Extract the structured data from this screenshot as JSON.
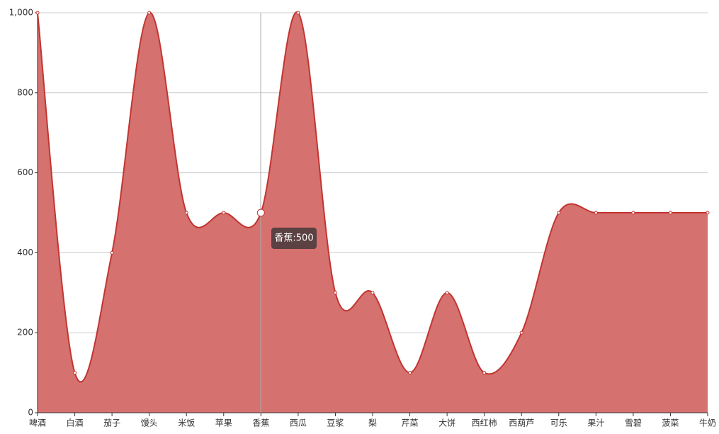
{
  "chart_data": {
    "type": "area",
    "categories": [
      "啤酒",
      "白酒",
      "茄子",
      "馒头",
      "米饭",
      "苹果",
      "香蕉",
      "西瓜",
      "豆浆",
      "梨",
      "芹菜",
      "大饼",
      "西红柿",
      "西葫芦",
      "可乐",
      "果汁",
      "雪碧",
      "菠菜",
      "牛奶"
    ],
    "values": [
      1000,
      100,
      400,
      1000,
      500,
      500,
      500,
      1000,
      300,
      300,
      100,
      300,
      100,
      200,
      500,
      500,
      500,
      500,
      500
    ],
    "color": "#c23531",
    "fill_color": "#d5716f",
    "ylim": [
      0,
      1000
    ],
    "yticks": [
      0,
      200,
      400,
      600,
      800,
      {
        "value": 1000,
        "label": "1,000"
      }
    ],
    "grid": true,
    "smooth": true,
    "tooltip": "香蕉:500"
  }
}
